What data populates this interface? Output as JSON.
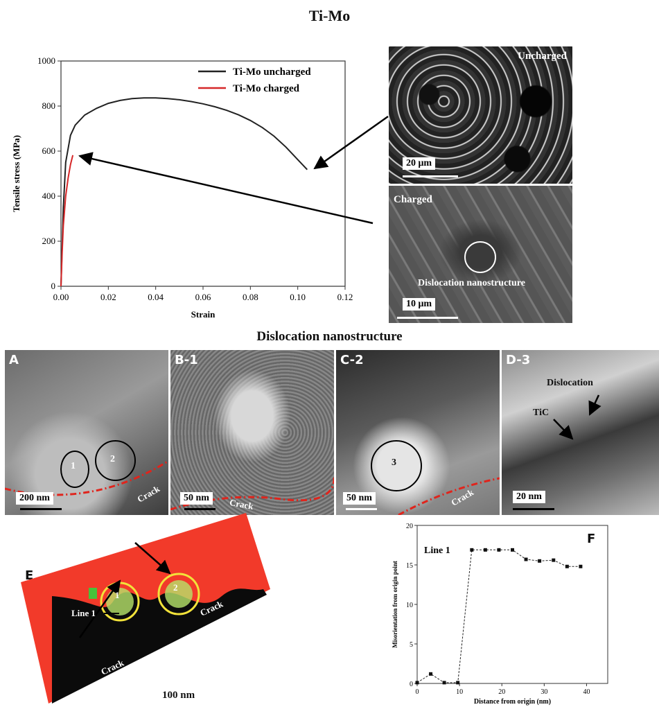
{
  "figure": {
    "title": "Ti-Mo",
    "section_title": "Dislocation nanostructure",
    "panels": {
      "A": {
        "label": "A",
        "scale": "200 nm",
        "crack": "Crack",
        "markers": [
          "1",
          "2"
        ]
      },
      "B": {
        "label": "B-1",
        "scale": "50 nm",
        "crack": "Crack"
      },
      "C": {
        "label": "C-2",
        "scale": "50 nm",
        "crack": "Crack",
        "marker": "3"
      },
      "D": {
        "label": "D-3",
        "scale": "20 nm",
        "dislocation": "Dislocation",
        "tic": "TiC"
      },
      "E": {
        "label": "E",
        "line": "Line 1",
        "crack": "Crack",
        "markers": [
          "1",
          "2"
        ],
        "scale": "100 nm"
      },
      "F": {
        "label": "F"
      }
    },
    "sem": {
      "uncharged": {
        "label": "Uncharged",
        "scale": "20 μm"
      },
      "charged": {
        "label": "Charged",
        "scale": "10 μm",
        "annotation": "Dislocation nanostructure"
      }
    }
  },
  "chart_data": [
    {
      "type": "line",
      "xlabel": "Strain",
      "ylabel": "Tensile stress (MPa)",
      "xlim": [
        0,
        0.12
      ],
      "ylim": [
        0,
        1000
      ],
      "xticks": [
        "0.00",
        "0.02",
        "0.04",
        "0.06",
        "0.08",
        "0.10",
        "0.12"
      ],
      "yticks": [
        "0",
        "200",
        "400",
        "600",
        "800",
        "1000"
      ],
      "legend_position": "top-right",
      "series": [
        {
          "name": "Ti-Mo uncharged",
          "color": "#222222",
          "x": [
            0,
            0.001,
            0.002,
            0.004,
            0.006,
            0.01,
            0.015,
            0.02,
            0.025,
            0.03,
            0.035,
            0.04,
            0.045,
            0.05,
            0.055,
            0.06,
            0.065,
            0.07,
            0.075,
            0.08,
            0.085,
            0.09,
            0.095,
            0.1,
            0.104
          ],
          "y": [
            0,
            350,
            550,
            670,
            715,
            760,
            790,
            812,
            825,
            833,
            836,
            836,
            833,
            828,
            820,
            810,
            797,
            781,
            761,
            736,
            705,
            666,
            618,
            562,
            518
          ]
        },
        {
          "name": "Ti-Mo charged",
          "color": "#d62728",
          "x": [
            0,
            0.0005,
            0.001,
            0.002,
            0.003,
            0.004,
            0.005
          ],
          "y": [
            0,
            150,
            270,
            400,
            480,
            540,
            582
          ]
        }
      ]
    },
    {
      "type": "line",
      "title": "Line 1",
      "xlabel": "Distance from origin (nm)",
      "ylabel": "Misorientation from origin point",
      "xlim": [
        0,
        45
      ],
      "ylim": [
        0,
        20
      ],
      "xticks": [
        "0",
        "10",
        "20",
        "30",
        "40"
      ],
      "yticks": [
        "0",
        "5",
        "10",
        "15",
        "20"
      ],
      "series": [
        {
          "x": [
            0,
            3.2,
            6.4,
            9.6,
            12.9,
            16.1,
            19.3,
            22.5,
            25.7,
            28.9,
            32.2,
            35.4,
            38.6
          ],
          "y": [
            0.1,
            1.2,
            0.1,
            0.1,
            16.9,
            16.9,
            16.9,
            16.9,
            15.7,
            15.5,
            15.6,
            14.8,
            14.8
          ]
        }
      ]
    }
  ]
}
